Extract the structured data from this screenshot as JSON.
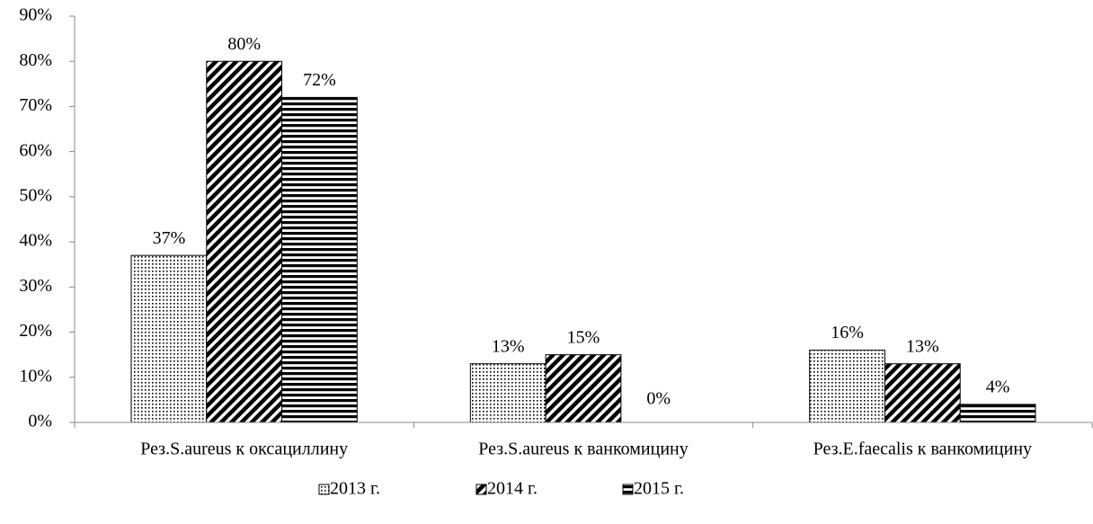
{
  "chart_data": {
    "type": "bar",
    "categories": [
      "Рез.S.aureus к оксациллину",
      "Рез.S.aureus к ванкомицину",
      "Рез.E.faecalis к ванкомицину"
    ],
    "series": [
      {
        "name": "2013 г.",
        "color": "#000000",
        "values": [
          37,
          13,
          16
        ],
        "value_labels": [
          "37%",
          "13%",
          "16%"
        ]
      },
      {
        "name": "2014 г.",
        "color": "#000000",
        "values": [
          80,
          15,
          13
        ],
        "value_labels": [
          "80%",
          "15%",
          "13%"
        ]
      },
      {
        "name": "2015 г.",
        "color": "#000000",
        "values": [
          72,
          0,
          4
        ],
        "value_labels": [
          "72%",
          "0%",
          "4%"
        ]
      }
    ],
    "ylim": [
      0,
      90
    ],
    "yticks": [
      {
        "value": 0,
        "label": "0%"
      },
      {
        "value": 10,
        "label": "10%"
      },
      {
        "value": 20,
        "label": "20%"
      },
      {
        "value": 30,
        "label": "30%"
      },
      {
        "value": 40,
        "label": "40%"
      },
      {
        "value": 50,
        "label": "50%"
      },
      {
        "value": 60,
        "label": "60%"
      },
      {
        "value": 70,
        "label": "70%"
      },
      {
        "value": 80,
        "label": "80%"
      },
      {
        "value": 90,
        "label": "90%"
      }
    ],
    "legend": "bottom"
  }
}
